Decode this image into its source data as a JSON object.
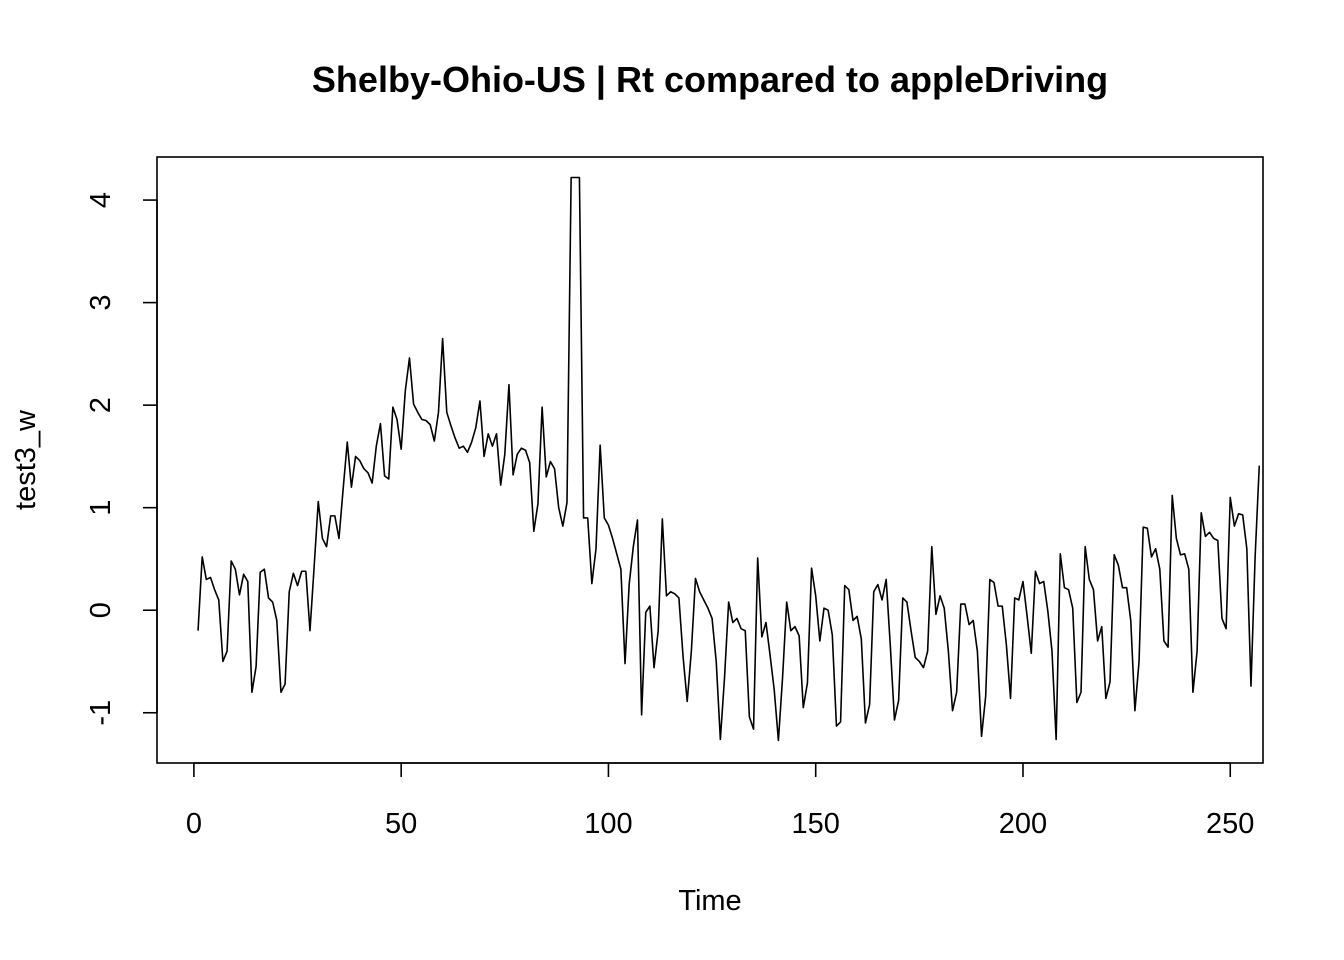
{
  "chart_data": {
    "type": "line",
    "title": "Shelby-Ohio-US | Rt compared to appleDriving",
    "xlabel": "Time",
    "ylabel": "test3_w",
    "xlim": [
      -8.9,
      257.9
    ],
    "ylim": [
      -1.49,
      4.42
    ],
    "xticks": [
      0,
      50,
      100,
      150,
      200,
      250
    ],
    "yticks": [
      -1,
      0,
      1,
      2,
      3,
      4
    ],
    "grid": false,
    "legend": "none",
    "line_color": "#000000",
    "series": [
      {
        "values": [
          -0.2,
          0.52,
          0.3,
          0.32,
          0.2,
          0.1,
          -0.5,
          -0.4,
          0.48,
          0.4,
          0.15,
          0.35,
          0.28,
          -0.8,
          -0.55,
          0.37,
          0.4,
          0.12,
          0.08,
          -0.1,
          -0.8,
          -0.72,
          0.18,
          0.36,
          0.24,
          0.38,
          0.38,
          -0.2,
          0.42,
          1.06,
          0.7,
          0.62,
          0.92,
          0.92,
          0.7,
          1.18,
          1.64,
          1.2,
          1.5,
          1.46,
          1.38,
          1.34,
          1.24,
          1.6,
          1.82,
          1.31,
          1.28,
          1.98,
          1.86,
          1.57,
          2.14,
          2.46,
          2.01,
          1.93,
          1.86,
          1.85,
          1.81,
          1.65,
          1.93,
          2.65,
          1.93,
          1.8,
          1.68,
          1.58,
          1.6,
          1.54,
          1.64,
          1.78,
          2.04,
          1.5,
          1.72,
          1.6,
          1.72,
          1.22,
          1.52,
          2.2,
          1.32,
          1.52,
          1.58,
          1.56,
          1.44,
          0.77,
          1.04,
          1.98,
          1.3,
          1.45,
          1.38,
          1.0,
          0.82,
          1.05,
          4.22,
          4.22,
          4.22,
          0.9,
          0.9,
          0.26,
          0.6,
          1.61,
          0.9,
          0.83,
          0.7,
          0.55,
          0.4,
          -0.52,
          0.25,
          0.62,
          0.88,
          -1.02,
          -0.02,
          0.04,
          -0.56,
          -0.2,
          0.89,
          0.14,
          0.18,
          0.16,
          0.12,
          -0.45,
          -0.89,
          -0.4,
          0.31,
          0.18,
          0.1,
          0.02,
          -0.08,
          -0.5,
          -1.26,
          -0.66,
          0.08,
          -0.12,
          -0.08,
          -0.18,
          -0.2,
          -1.04,
          -1.16,
          0.51,
          -0.26,
          -0.12,
          -0.44,
          -0.78,
          -1.27,
          -0.66,
          0.08,
          -0.2,
          -0.16,
          -0.25,
          -0.95,
          -0.71,
          0.41,
          0.14,
          -0.3,
          0.02,
          0.0,
          -0.24,
          -1.13,
          -1.09,
          0.24,
          0.2,
          -0.1,
          -0.06,
          -0.28,
          -1.1,
          -0.92,
          0.18,
          0.25,
          0.1,
          0.3,
          -0.35,
          -1.07,
          -0.88,
          0.12,
          0.08,
          -0.2,
          -0.46,
          -0.5,
          -0.56,
          -0.4,
          0.62,
          -0.04,
          0.14,
          0.02,
          -0.4,
          -0.98,
          -0.8,
          0.06,
          0.06,
          -0.14,
          -0.1,
          -0.4,
          -1.23,
          -0.84,
          0.3,
          0.27,
          0.04,
          0.04,
          -0.34,
          -0.86,
          0.12,
          0.1,
          0.28,
          -0.06,
          -0.42,
          0.38,
          0.26,
          0.28,
          -0.01,
          -0.4,
          -1.26,
          0.55,
          0.22,
          0.2,
          0.02,
          -0.9,
          -0.8,
          0.62,
          0.3,
          0.2,
          -0.3,
          -0.16,
          -0.86,
          -0.7,
          0.54,
          0.44,
          0.22,
          0.22,
          -0.1,
          -0.98,
          -0.5,
          0.81,
          0.8,
          0.52,
          0.6,
          0.4,
          -0.3,
          -0.36,
          1.12,
          0.7,
          0.54,
          0.55,
          0.4,
          -0.8,
          -0.4,
          0.95,
          0.72,
          0.76,
          0.7,
          0.68,
          -0.08,
          -0.18,
          1.1,
          0.82,
          0.94,
          0.93,
          0.6,
          -0.74,
          0.52,
          1.41
        ]
      }
    ]
  }
}
